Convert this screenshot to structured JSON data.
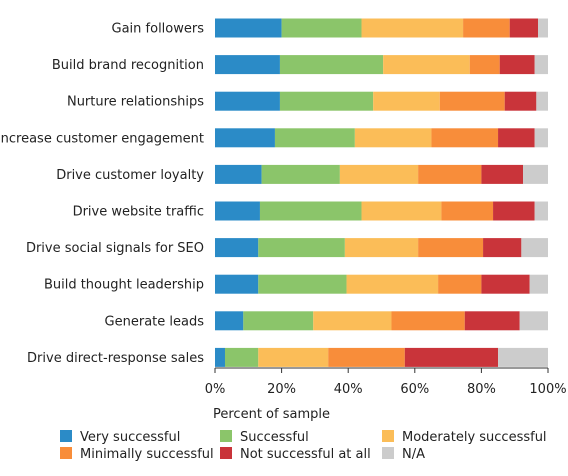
{
  "chart_data": {
    "type": "bar",
    "orientation": "horizontal",
    "stacked": true,
    "xlabel": "Percent of sample",
    "xlim": [
      0,
      100
    ],
    "xticks": [
      "0%",
      "20%",
      "40%",
      "60%",
      "80%",
      "100%"
    ],
    "grid": false,
    "legend_position": "bottom",
    "categories": [
      "Gain followers",
      "Build brand recognition",
      "Nurture relationships",
      "Increase customer engagement",
      "Drive customer loyalty",
      "Drive website traffic",
      "Drive social signals for SEO",
      "Build thought leadership",
      "Generate leads",
      "Drive direct-response sales"
    ],
    "series": [
      {
        "name": "Very successful",
        "color": "#2b8bc7",
        "values": [
          20.0,
          19.5,
          19.5,
          18.0,
          14.0,
          13.5,
          13.0,
          13.0,
          8.5,
          3.0
        ]
      },
      {
        "name": "Successful",
        "color": "#8bc56a",
        "values": [
          24.0,
          31.0,
          28.0,
          24.0,
          23.5,
          30.5,
          26.0,
          26.5,
          21.0,
          10.0
        ]
      },
      {
        "name": "Moderately successful",
        "color": "#fbbd58",
        "values": [
          30.5,
          26.0,
          20.0,
          23.0,
          23.5,
          24.0,
          22.0,
          27.5,
          23.5,
          21.0
        ]
      },
      {
        "name": "Minimally successful",
        "color": "#f88d3a",
        "values": [
          14.0,
          9.0,
          19.5,
          20.0,
          19.0,
          15.5,
          19.5,
          13.0,
          22.0,
          23.0
        ]
      },
      {
        "name": "Not successful at all",
        "color": "#c9343a",
        "values": [
          8.5,
          10.5,
          9.5,
          11.0,
          12.5,
          12.5,
          11.5,
          14.5,
          16.5,
          28.0
        ]
      },
      {
        "name": "N/A",
        "color": "#cccccc",
        "values": [
          3.0,
          4.0,
          3.5,
          4.0,
          7.5,
          4.0,
          8.0,
          5.5,
          8.5,
          15.0
        ]
      }
    ]
  }
}
